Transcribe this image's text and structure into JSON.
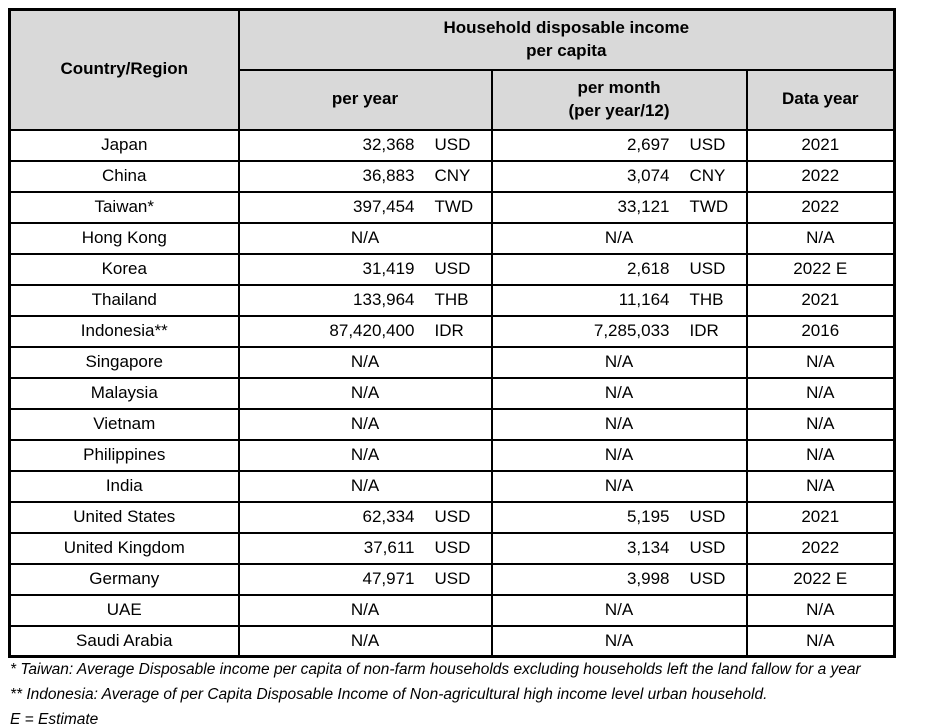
{
  "table": {
    "header": {
      "country_region": "Country/Region",
      "group_title_line1": "Household disposable income",
      "group_title_line2": "per capita",
      "per_year": "per year",
      "per_month_line1": "per month",
      "per_month_line2": "(per year/12)",
      "data_year": "Data year"
    },
    "rows": [
      {
        "country": "Japan",
        "per_year": "32,368",
        "per_year_currency": "USD",
        "per_month": "2,697",
        "per_month_currency": "USD",
        "data_year": "2021"
      },
      {
        "country": "China",
        "per_year": "36,883",
        "per_year_currency": "CNY",
        "per_month": "3,074",
        "per_month_currency": "CNY",
        "data_year": "2022"
      },
      {
        "country": "Taiwan*",
        "per_year": "397,454",
        "per_year_currency": "TWD",
        "per_month": "33,121",
        "per_month_currency": "TWD",
        "data_year": "2022"
      },
      {
        "country": "Hong Kong",
        "per_year": "N/A",
        "per_year_currency": "",
        "per_month": "N/A",
        "per_month_currency": "",
        "data_year": "N/A"
      },
      {
        "country": "Korea",
        "per_year": "31,419",
        "per_year_currency": "USD",
        "per_month": "2,618",
        "per_month_currency": "USD",
        "data_year": "2022 E"
      },
      {
        "country": "Thailand",
        "per_year": "133,964",
        "per_year_currency": "THB",
        "per_month": "11,164",
        "per_month_currency": "THB",
        "data_year": "2021"
      },
      {
        "country": "Indonesia**",
        "per_year": "87,420,400",
        "per_year_currency": "IDR",
        "per_month": "7,285,033",
        "per_month_currency": "IDR",
        "data_year": "2016"
      },
      {
        "country": "Singapore",
        "per_year": "N/A",
        "per_year_currency": "",
        "per_month": "N/A",
        "per_month_currency": "",
        "data_year": "N/A"
      },
      {
        "country": "Malaysia",
        "per_year": "N/A",
        "per_year_currency": "",
        "per_month": "N/A",
        "per_month_currency": "",
        "data_year": "N/A"
      },
      {
        "country": "Vietnam",
        "per_year": "N/A",
        "per_year_currency": "",
        "per_month": "N/A",
        "per_month_currency": "",
        "data_year": "N/A"
      },
      {
        "country": "Philippines",
        "per_year": "N/A",
        "per_year_currency": "",
        "per_month": "N/A",
        "per_month_currency": "",
        "data_year": "N/A"
      },
      {
        "country": "India",
        "per_year": "N/A",
        "per_year_currency": "",
        "per_month": "N/A",
        "per_month_currency": "",
        "data_year": "N/A"
      },
      {
        "country": "United States",
        "per_year": "62,334",
        "per_year_currency": "USD",
        "per_month": "5,195",
        "per_month_currency": "USD",
        "data_year": "2021"
      },
      {
        "country": "United Kingdom",
        "per_year": "37,611",
        "per_year_currency": "USD",
        "per_month": "3,134",
        "per_month_currency": "USD",
        "data_year": "2022"
      },
      {
        "country": "Germany",
        "per_year": "47,971",
        "per_year_currency": "USD",
        "per_month": "3,998",
        "per_month_currency": "USD",
        "data_year": "2022 E"
      },
      {
        "country": "UAE",
        "per_year": "N/A",
        "per_year_currency": "",
        "per_month": "N/A",
        "per_month_currency": "",
        "data_year": "N/A"
      },
      {
        "country": "Saudi Arabia",
        "per_year": "N/A",
        "per_year_currency": "",
        "per_month": "N/A",
        "per_month_currency": "",
        "data_year": "N/A"
      }
    ]
  },
  "footnotes": [
    "* Taiwan: Average Disposable income per capita of non-farm households excluding households left the land fallow for a year",
    "** Indonesia: Average of per Capita Disposable Income of Non-agricultural high income level urban household.",
    "E = Estimate"
  ],
  "colors": {
    "header_bg": "#d9d9d9",
    "border": "#000000",
    "text": "#000000"
  },
  "chart_data": {
    "type": "table",
    "title": "Household disposable income per capita",
    "columns": [
      "Country/Region",
      "per year",
      "per year currency",
      "per month (per year/12)",
      "per month currency",
      "Data year"
    ],
    "rows": [
      [
        "Japan",
        32368,
        "USD",
        2697,
        "USD",
        "2021"
      ],
      [
        "China",
        36883,
        "CNY",
        3074,
        "CNY",
        "2022"
      ],
      [
        "Taiwan*",
        397454,
        "TWD",
        33121,
        "TWD",
        "2022"
      ],
      [
        "Hong Kong",
        null,
        null,
        null,
        null,
        "N/A"
      ],
      [
        "Korea",
        31419,
        "USD",
        2618,
        "USD",
        "2022 E"
      ],
      [
        "Thailand",
        133964,
        "THB",
        11164,
        "THB",
        "2021"
      ],
      [
        "Indonesia**",
        87420400,
        "IDR",
        7285033,
        "IDR",
        "2016"
      ],
      [
        "Singapore",
        null,
        null,
        null,
        null,
        "N/A"
      ],
      [
        "Malaysia",
        null,
        null,
        null,
        null,
        "N/A"
      ],
      [
        "Vietnam",
        null,
        null,
        null,
        null,
        "N/A"
      ],
      [
        "Philippines",
        null,
        null,
        null,
        null,
        "N/A"
      ],
      [
        "India",
        null,
        null,
        null,
        null,
        "N/A"
      ],
      [
        "United States",
        62334,
        "USD",
        5195,
        "USD",
        "2021"
      ],
      [
        "United Kingdom",
        37611,
        "USD",
        3134,
        "USD",
        "2022"
      ],
      [
        "Germany",
        47971,
        "USD",
        3998,
        "USD",
        "2022 E"
      ],
      [
        "UAE",
        null,
        null,
        null,
        null,
        "N/A"
      ],
      [
        "Saudi Arabia",
        null,
        null,
        null,
        null,
        "N/A"
      ]
    ]
  }
}
